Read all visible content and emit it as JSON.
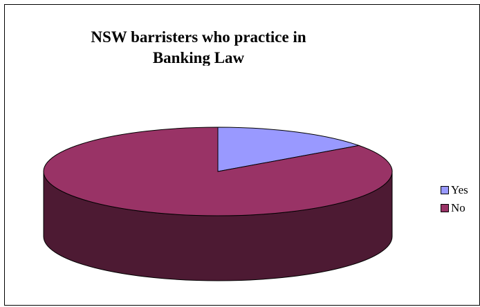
{
  "chart_data": {
    "type": "pie",
    "title": "NSW barristers who practice in Banking Law",
    "categories": [
      "Yes",
      "No"
    ],
    "values": [
      15,
      85
    ],
    "unit": "%",
    "colors": [
      "#9999ff",
      "#993366"
    ],
    "side_colors": [
      "#4d4d80",
      "#4d1a33"
    ],
    "legend_position": "right",
    "three_d": true
  }
}
